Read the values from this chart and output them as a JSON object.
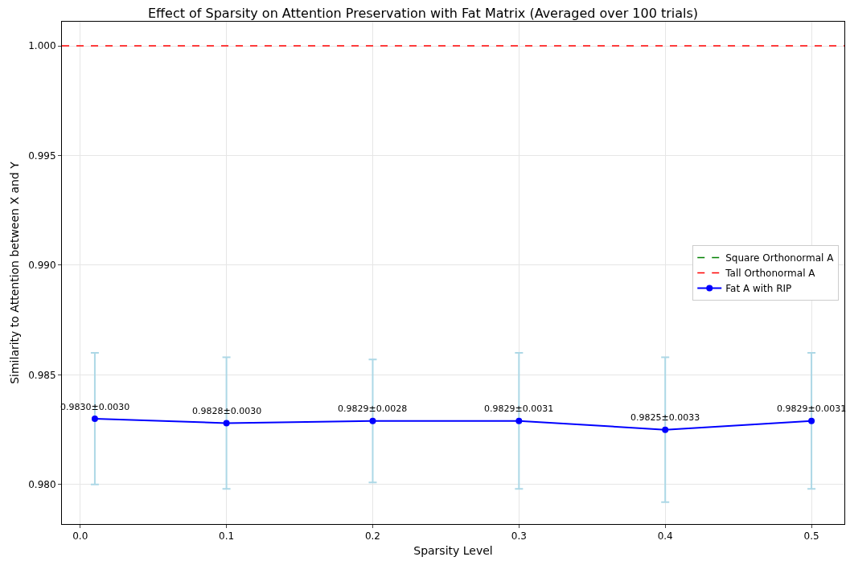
{
  "chart_data": {
    "type": "line",
    "title": "Effect of Sparsity on Attention Preservation with Fat Matrix (Averaged over 100 trials)",
    "xlabel": "Sparsity Level",
    "ylabel": "Similarity to Attention between X and Y",
    "x": [
      0.01,
      0.1,
      0.2,
      0.3,
      0.4,
      0.5
    ],
    "series": [
      {
        "name": "Fat A with RIP",
        "color": "#0000ff",
        "values": [
          0.983,
          0.9828,
          0.9829,
          0.9829,
          0.9825,
          0.9829
        ],
        "errors": [
          0.003,
          0.003,
          0.0028,
          0.0031,
          0.0033,
          0.0031
        ],
        "value_labels": [
          "0.9830±0.0030",
          "0.9828±0.0030",
          "0.9829±0.0028",
          "0.9829±0.0031",
          "0.9825±0.0033",
          "0.9829±0.0031"
        ]
      }
    ],
    "ref_lines": [
      {
        "axis": "y",
        "value": null,
        "label": "Square Orthonormal A",
        "color": "#008000",
        "line_style": "dashed"
      },
      {
        "axis": "y",
        "value": 1.0,
        "label": "Tall Orthonormal A",
        "color": "#ff0000",
        "line_style": "dashed"
      }
    ],
    "xlim": [
      -0.0125,
      0.5225
    ],
    "xticks": [
      {
        "value": 0,
        "label": "0.0"
      },
      0.1,
      0.2,
      0.3,
      0.4,
      0.5
    ],
    "ylim": [
      0.9782,
      1.0011
    ],
    "yticks": [
      {
        "value": 0.98,
        "label": "0.980"
      },
      0.985,
      {
        "value": 0.99,
        "label": "0.990"
      },
      0.995,
      {
        "value": 1.0,
        "label": "1.000"
      }
    ],
    "grid": true,
    "legend": "right",
    "marker": "circle",
    "line_style": "solid"
  }
}
